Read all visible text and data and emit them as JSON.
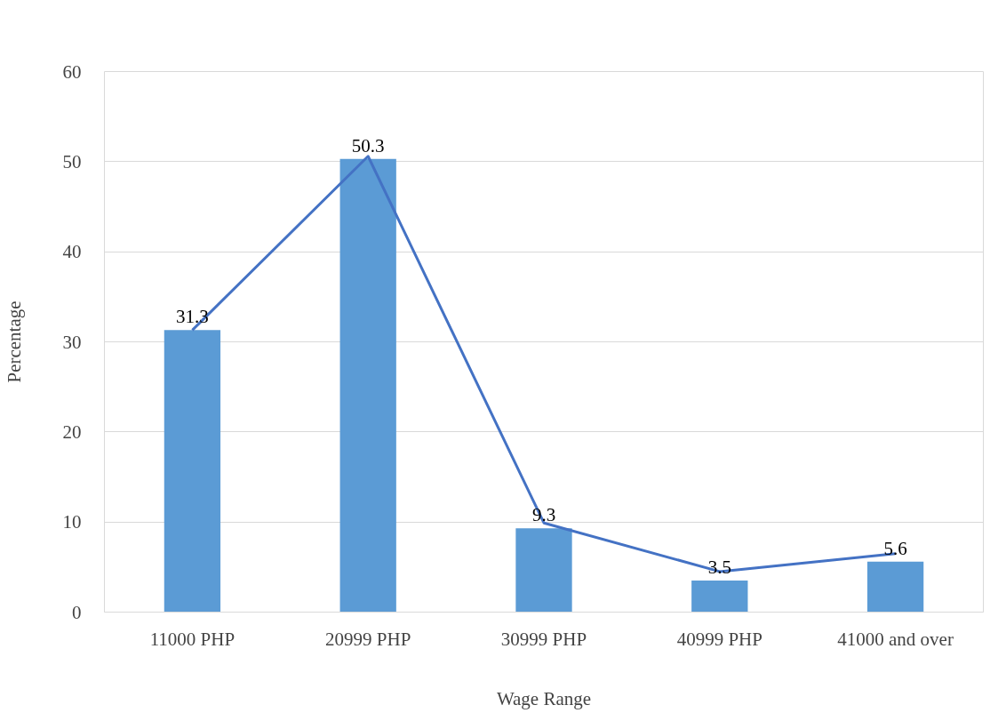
{
  "chart_data": {
    "type": "bar",
    "xlabel": "Wage Range",
    "ylabel": "Percentage",
    "categories": [
      "11000 PHP",
      "20999 PHP",
      "30999 PHP",
      "40999 PHP",
      "41000 and over"
    ],
    "series": [
      {
        "color": "#5b9bd5",
        "values": [
          31.3,
          50.3,
          9.3,
          3.5,
          5.6
        ],
        "value_labels": [
          "31.3",
          "50.3",
          "9.3",
          "3.5",
          "5.6"
        ]
      },
      {
        "type": "line",
        "color": "#4472c4",
        "values": [
          31.3,
          50.6,
          9.9,
          4.5,
          6.5
        ]
      }
    ],
    "ylim": [
      0,
      60
    ],
    "yticks": [
      0,
      10,
      20,
      30,
      40,
      50,
      60
    ],
    "grid": "y"
  }
}
